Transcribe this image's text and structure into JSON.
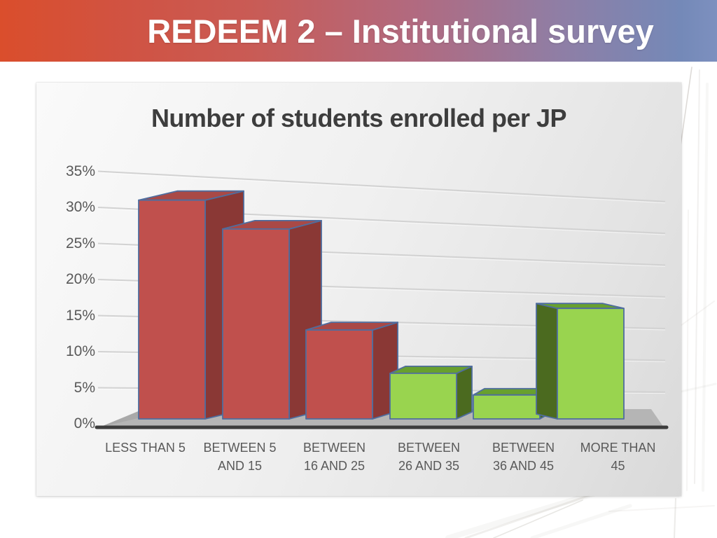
{
  "header": {
    "title": "REDEEM 2 – Institutional survey",
    "gradient_left": "#da4e2c",
    "gradient_right": "#7489b8",
    "text_color": "#ffffff"
  },
  "chart_data": {
    "type": "bar",
    "style": "3d",
    "title": "Number of students enrolled per JP",
    "title_color": "#3d3d3d",
    "categories": [
      "LESS THAN 5",
      "BETWEEN 5 AND 15",
      "BETWEEN 16 AND 25",
      "BETWEEN 26 AND 35",
      "BETWEEN 36 AND 45",
      "MORE THAN 45"
    ],
    "category_label_lines": [
      [
        "LESS THAN 5"
      ],
      [
        "BETWEEN 5",
        "AND 15"
      ],
      [
        "BETWEEN",
        "16 AND 25"
      ],
      [
        "BETWEEN",
        "26 AND 35"
      ],
      [
        "BETWEEN",
        "36 AND 45"
      ],
      [
        "MORE THAN",
        "45"
      ]
    ],
    "values": [
      31,
      27,
      13,
      7,
      4,
      16
    ],
    "unit": "%",
    "xlabel": "",
    "ylabel": "",
    "ylim": [
      0,
      35
    ],
    "ytick_step": 5,
    "ytick_labels": [
      "0%",
      "5%",
      "10%",
      "15%",
      "20%",
      "25%",
      "30%",
      "35%"
    ],
    "grid": true,
    "legend": "none",
    "bar_colors": [
      "red",
      "red",
      "red",
      "green",
      "green",
      "green"
    ],
    "palette": {
      "red": {
        "front": "#c0504d",
        "side": "#8a3835",
        "top": "#a94946"
      },
      "green": {
        "front": "#99d44f",
        "side": "#4b6a1f",
        "top": "#68a02e"
      },
      "edge": "#4f6d9e"
    },
    "floor_color": "#b5b5b5",
    "axis_line_color": "#3d3d3d",
    "gridline_color": "#d2d2d2",
    "tick_text_color": "#595959"
  }
}
